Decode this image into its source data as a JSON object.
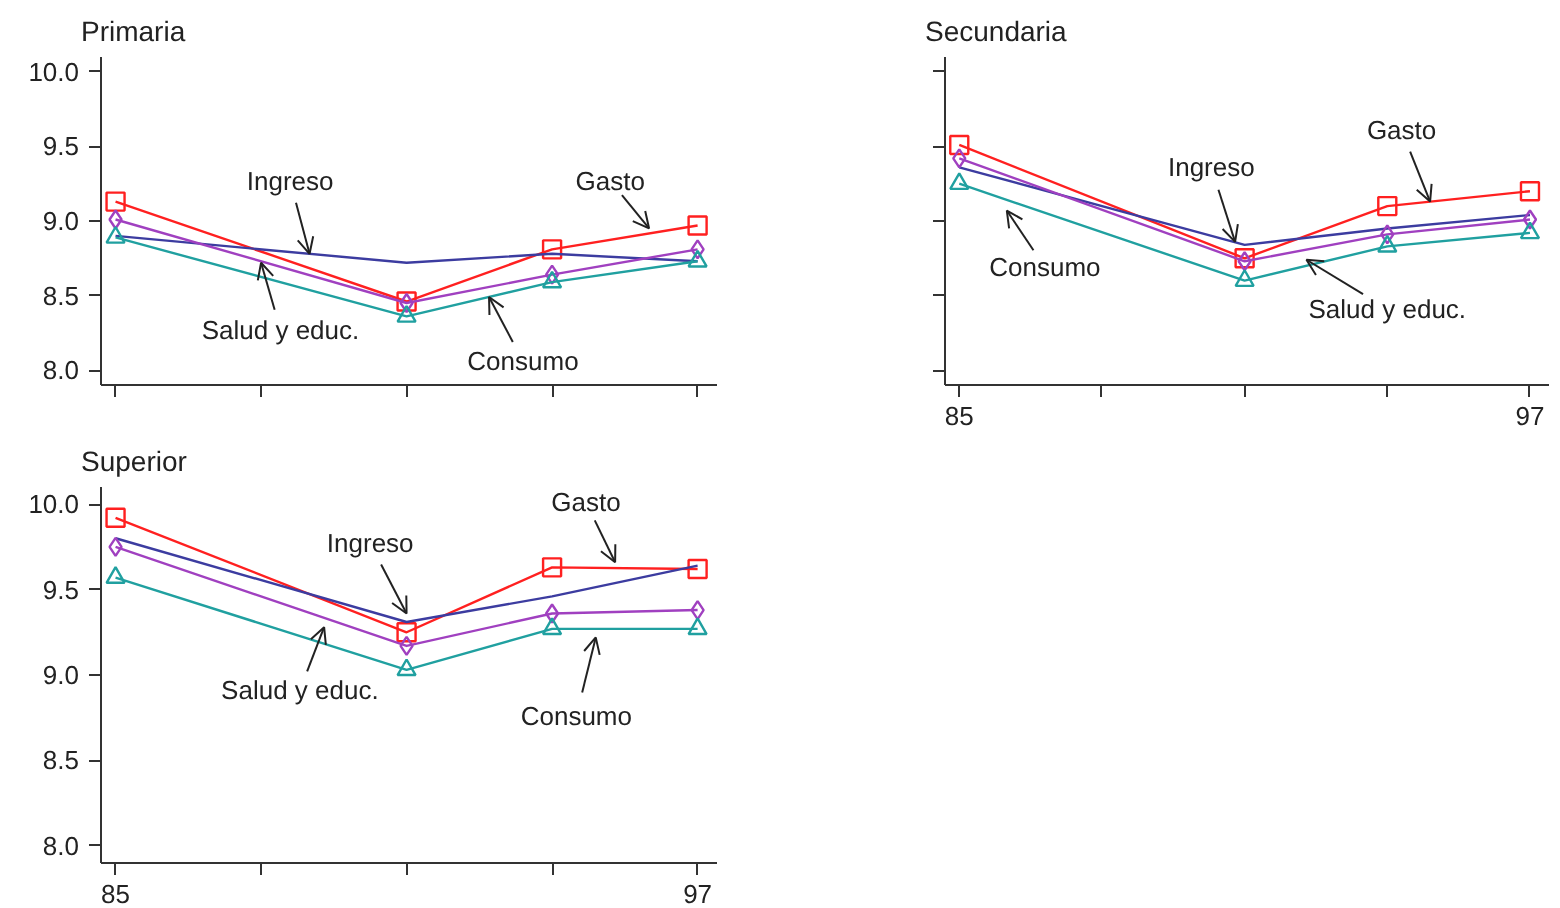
{
  "chart_data": [
    {
      "type": "line",
      "title": "Primaria",
      "x": [
        85,
        91,
        94,
        97
      ],
      "xlim": [
        84.7,
        97.4
      ],
      "ylim": [
        7.9,
        10.1
      ],
      "tick_labels": "y",
      "xticks": [
        85,
        88,
        91,
        94,
        97
      ],
      "yticks": [
        {
          "value": 8,
          "label": "8.0"
        },
        {
          "value": 8.5,
          "label": "8.5"
        },
        {
          "value": 9,
          "label": "9.0"
        },
        {
          "value": 9.5,
          "label": "9.5"
        },
        {
          "value": 10,
          "label": "10.0"
        }
      ],
      "series": [
        {
          "color": "#ff2020",
          "marker": "square",
          "values": [
            9.13,
            8.46,
            8.81,
            8.97
          ]
        },
        {
          "color": "#3c3ca0",
          "marker": "none",
          "values": [
            8.9,
            8.72,
            8.78,
            8.73
          ]
        },
        {
          "color": "#a040c0",
          "marker": "diamond",
          "values": [
            9.01,
            8.45,
            8.64,
            8.81
          ]
        },
        {
          "color": "#20a0a0",
          "marker": "triangle",
          "values": [
            8.89,
            8.36,
            8.59,
            8.73
          ]
        }
      ],
      "annotations": [
        {
          "text": "Ingreso",
          "x": 89.0,
          "y": 8.78
        },
        {
          "text": "Gasto",
          "x": 96.0,
          "y": 8.95
        },
        {
          "text": "Salud y educ.",
          "x": 88.0,
          "y": 8.72
        },
        {
          "text": "Consumo",
          "x": 92.7,
          "y": 8.49
        }
      ]
    },
    {
      "type": "line",
      "title": "Secundaria",
      "x": [
        85,
        91,
        94,
        97
      ],
      "xlim": [
        84.7,
        97.4
      ],
      "ylim": [
        7.9,
        10.1
      ],
      "tick_labels": "x",
      "xticks": [
        85,
        {
          "value": 88,
          "label": null
        },
        {
          "value": 91,
          "label": null
        },
        {
          "value": 94,
          "label": null
        },
        97
      ],
      "yticks": [
        8,
        8.5,
        9,
        9.5,
        10
      ],
      "series": [
        {
          "color": "#ff2020",
          "marker": "square",
          "values": [
            9.51,
            8.75,
            9.1,
            9.2
          ]
        },
        {
          "color": "#3c3ca0",
          "marker": "none",
          "values": [
            9.36,
            8.84,
            8.95,
            9.04
          ]
        },
        {
          "color": "#a040c0",
          "marker": "diamond",
          "values": [
            9.42,
            8.73,
            8.91,
            9.01
          ]
        },
        {
          "color": "#20a0a0",
          "marker": "triangle",
          "values": [
            9.25,
            8.6,
            8.83,
            8.92
          ]
        }
      ],
      "annotations": [
        {
          "text": "Ingreso",
          "x": 90.8,
          "y": 8.86
        },
        {
          "text": "Gasto",
          "x": 94.9,
          "y": 9.13
        },
        {
          "text": "Consumo",
          "x": 86.0,
          "y": 9.07
        },
        {
          "text": "Salud y educ.",
          "x": 92.3,
          "y": 8.74
        }
      ]
    },
    {
      "type": "line",
      "title": "Superior",
      "x": [
        85,
        91,
        94,
        97
      ],
      "xlim": [
        84.7,
        97.4
      ],
      "ylim": [
        7.9,
        10.1
      ],
      "xticks": [
        85,
        {
          "value": 88,
          "label": null
        },
        {
          "value": 91,
          "label": null
        },
        {
          "value": 94,
          "label": null
        },
        97
      ],
      "yticks": [
        {
          "value": 8,
          "label": "8.0"
        },
        {
          "value": 8.5,
          "label": "8.5"
        },
        {
          "value": 9,
          "label": "9.0"
        },
        {
          "value": 9.5,
          "label": "9.5"
        },
        {
          "value": 10,
          "label": "10.0"
        }
      ],
      "series": [
        {
          "color": "#ff2020",
          "marker": "square",
          "values": [
            9.92,
            9.25,
            9.63,
            9.62
          ]
        },
        {
          "color": "#3c3ca0",
          "marker": "none",
          "values": [
            9.8,
            9.31,
            9.46,
            9.64
          ]
        },
        {
          "color": "#a040c0",
          "marker": "diamond",
          "values": [
            9.75,
            9.17,
            9.36,
            9.38
          ]
        },
        {
          "color": "#20a0a0",
          "marker": "triangle",
          "values": [
            9.57,
            9.03,
            9.27,
            9.27
          ]
        }
      ],
      "annotations": [
        {
          "text": "Ingreso",
          "x": 91.0,
          "y": 9.36
        },
        {
          "text": "Gasto",
          "x": 95.3,
          "y": 9.66
        },
        {
          "text": "Salud y educ.",
          "x": 89.3,
          "y": 9.28
        },
        {
          "text": "Consumo",
          "x": 94.9,
          "y": 9.22
        }
      ]
    }
  ]
}
